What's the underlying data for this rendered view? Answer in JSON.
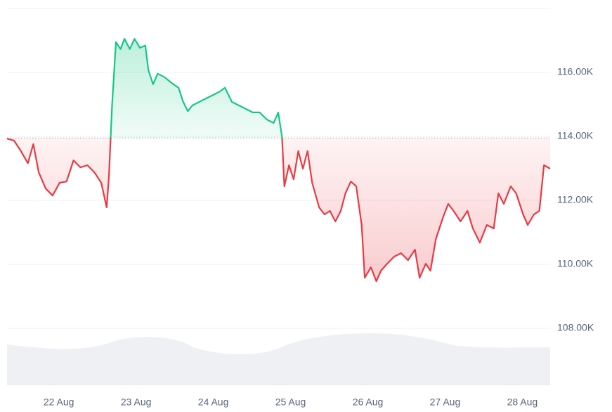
{
  "chart_data": {
    "type": "line",
    "series": [
      {
        "name": "price",
        "color_up": "#16c784",
        "color_down": "#ea3943",
        "x": [
          21.33,
          21.42,
          21.51,
          21.6,
          21.67,
          21.74,
          21.83,
          21.92,
          22.01,
          22.1,
          22.19,
          22.28,
          22.37,
          22.46,
          22.55,
          22.62,
          22.65,
          22.69,
          22.74,
          22.8,
          22.85,
          22.92,
          22.98,
          23.05,
          23.12,
          23.16,
          23.22,
          23.28,
          23.37,
          23.46,
          23.55,
          23.61,
          23.67,
          23.73,
          23.82,
          23.91,
          24.0,
          24.09,
          24.15,
          24.24,
          24.33,
          24.42,
          24.51,
          24.6,
          24.69,
          24.78,
          24.84,
          24.89,
          24.92,
          24.98,
          25.04,
          25.1,
          25.16,
          25.22,
          25.28,
          25.37,
          25.44,
          25.51,
          25.58,
          25.65,
          25.71,
          25.78,
          25.85,
          25.92,
          25.96,
          26.04,
          26.11,
          26.17,
          26.25,
          26.34,
          26.43,
          26.52,
          26.61,
          26.67,
          26.75,
          26.81,
          26.88,
          26.97,
          27.04,
          27.11,
          27.2,
          27.29,
          27.36,
          27.45,
          27.54,
          27.63,
          27.69,
          27.76,
          27.85,
          27.92,
          28.01,
          28.07,
          28.15,
          28.22,
          28.28,
          28.36
        ],
        "values": [
          113930,
          113870,
          113540,
          113160,
          113760,
          112880,
          112370,
          112150,
          112550,
          112590,
          113250,
          113030,
          113100,
          112880,
          112550,
          111780,
          112770,
          114970,
          116950,
          116730,
          117050,
          116730,
          117050,
          116770,
          116840,
          116070,
          115630,
          115960,
          115850,
          115670,
          115520,
          115080,
          114790,
          114970,
          115080,
          115190,
          115300,
          115410,
          115520,
          115080,
          114970,
          114860,
          114750,
          114750,
          114530,
          114420,
          114750,
          113980,
          112440,
          113100,
          112660,
          113540,
          112990,
          113540,
          112550,
          111780,
          111560,
          111670,
          111340,
          111670,
          112220,
          112590,
          112440,
          111230,
          109580,
          109910,
          109470,
          109800,
          110020,
          110240,
          110350,
          110130,
          110460,
          109580,
          110020,
          109800,
          110790,
          111450,
          111890,
          111670,
          111340,
          111670,
          111120,
          110680,
          111230,
          111120,
          112220,
          111890,
          112440,
          112220,
          111560,
          111230,
          111560,
          111670,
          113100,
          112990
        ]
      }
    ],
    "baseline": 113950,
    "xlim": [
      21.33,
      28.36
    ],
    "xticks": [
      {
        "value": 22,
        "label": "22 Aug"
      },
      {
        "value": 23,
        "label": "23 Aug"
      },
      {
        "value": 24,
        "label": "24 Aug"
      },
      {
        "value": 25,
        "label": "25 Aug"
      },
      {
        "value": 26,
        "label": "26 Aug"
      },
      {
        "value": 27,
        "label": "27 Aug"
      },
      {
        "value": 28,
        "label": "28 Aug"
      }
    ],
    "ylim": [
      106220,
      118000
    ],
    "yticks": [
      {
        "value": 108000,
        "label": "108.00K"
      },
      {
        "value": 110000,
        "label": "110.00K"
      },
      {
        "value": 112000,
        "label": "112.00K"
      },
      {
        "value": 114000,
        "label": "114.00K"
      },
      {
        "value": 116000,
        "label": "116.00K"
      }
    ],
    "grid": true
  }
}
